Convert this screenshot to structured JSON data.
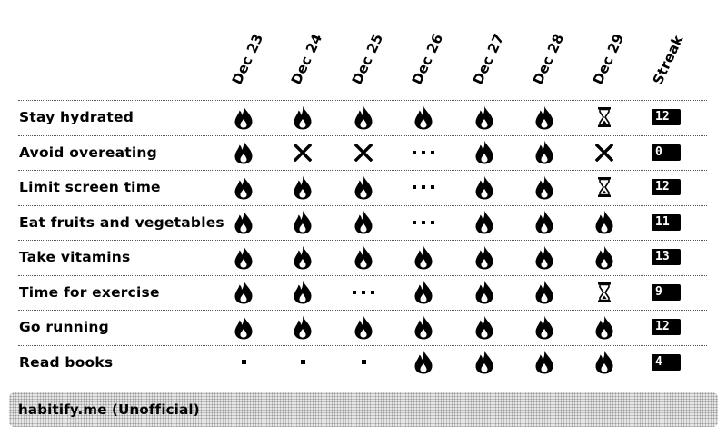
{
  "columns": [
    "Dec 23",
    "Dec 24",
    "Dec 25",
    "Dec 26",
    "Dec 27",
    "Dec 28",
    "Dec 29"
  ],
  "streak_header": "Streak",
  "status_icons": {
    "done": "flame-icon",
    "missed": "cross-icon",
    "skipped": "ellipsis-icon",
    "pending": "hourglass-icon",
    "none": "dot-icon"
  },
  "habits": [
    {
      "name": "Stay hydrated",
      "days": [
        "done",
        "done",
        "done",
        "done",
        "done",
        "done",
        "pending"
      ],
      "streak": "12"
    },
    {
      "name": "Avoid overeating",
      "days": [
        "done",
        "missed",
        "missed",
        "skipped",
        "done",
        "done",
        "missed"
      ],
      "streak": "0"
    },
    {
      "name": "Limit screen time",
      "days": [
        "done",
        "done",
        "done",
        "skipped",
        "done",
        "done",
        "pending"
      ],
      "streak": "12"
    },
    {
      "name": "Eat fruits and vegetables",
      "days": [
        "done",
        "done",
        "done",
        "skipped",
        "done",
        "done",
        "done"
      ],
      "streak": "11"
    },
    {
      "name": "Take vitamins",
      "days": [
        "done",
        "done",
        "done",
        "done",
        "done",
        "done",
        "done"
      ],
      "streak": "13"
    },
    {
      "name": "Time for exercise",
      "days": [
        "done",
        "done",
        "skipped",
        "done",
        "done",
        "done",
        "pending"
      ],
      "streak": "9"
    },
    {
      "name": "Go running",
      "days": [
        "done",
        "done",
        "done",
        "done",
        "done",
        "done",
        "done"
      ],
      "streak": "12"
    },
    {
      "name": "Read books",
      "days": [
        "none",
        "none",
        "none",
        "done",
        "done",
        "done",
        "done"
      ],
      "streak": "4"
    }
  ],
  "footer": {
    "text": "habitify.me (Unofficial)"
  }
}
